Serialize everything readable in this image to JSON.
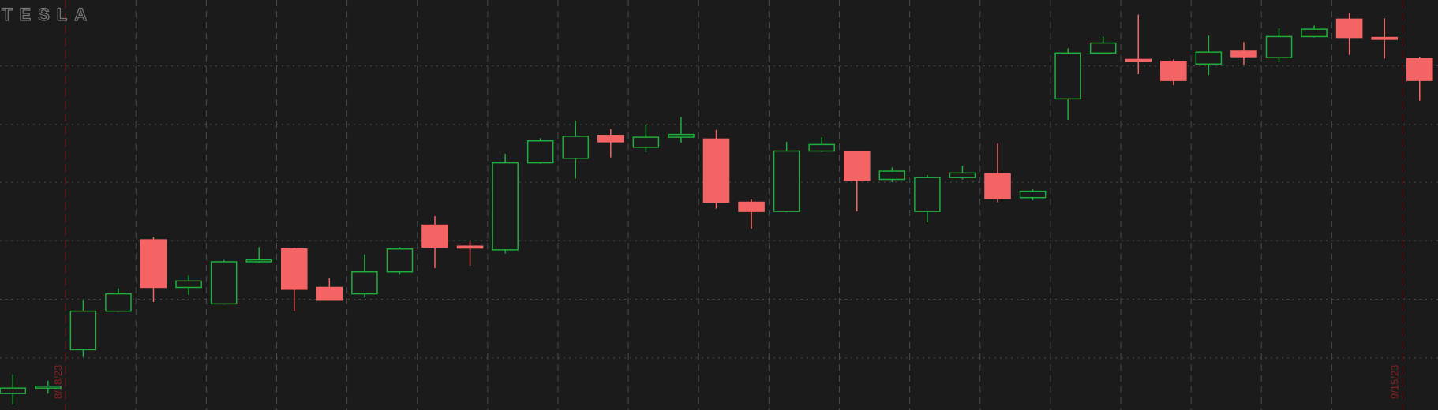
{
  "chart_data": {
    "type": "candlestick",
    "title": "TESLA",
    "categories": [
      null,
      null,
      null,
      null,
      null,
      null,
      null,
      null,
      null,
      null,
      null,
      null,
      null,
      null,
      null,
      null,
      null,
      null,
      null,
      null,
      null,
      null,
      null,
      null,
      null,
      null,
      null,
      null,
      null,
      null,
      null,
      null,
      null,
      null,
      null,
      null,
      null,
      null,
      null,
      null,
      null
    ],
    "series": [
      {
        "open": [
          18,
          24,
          66,
          108,
          186,
          134,
          116,
          162,
          176,
          134,
          127,
          151,
          202,
          179,
          175,
          270,
          275,
          300,
          287,
          298,
          296,
          227,
          217,
          283,
          282,
          252,
          217,
          254,
          258,
          232,
          340,
          390,
          383,
          381,
          378,
          392,
          385,
          408,
          427,
          407,
          384
        ],
        "high": [
          39,
          32,
          120,
          133,
          189,
          147,
          164,
          178,
          177,
          144,
          170,
          178,
          212,
          184,
          280,
          297,
          316,
          307,
          312,
          320,
          306,
          230,
          293,
          298,
          282,
          265,
          257,
          267,
          291,
          241,
          395,
          408,
          432,
          383,
          409,
          402,
          417,
          420,
          434,
          428,
          386
        ],
        "low": [
          6,
          18,
          58,
          107,
          118,
          126,
          115,
          161,
          108,
          120,
          123,
          148,
          155,
          158,
          171,
          269,
          253,
          276,
          282,
          292,
          220,
          198,
          216,
          282,
          217,
          249,
          205,
          252,
          227,
          229,
          317,
          390,
          367,
          355,
          366,
          377,
          380,
          407,
          388,
          384,
          338
        ],
        "close": [
          24,
          26,
          108,
          127,
          134,
          141,
          162,
          164,
          132,
          120,
          151,
          176,
          178,
          177,
          270,
          294,
          299,
          293,
          298,
          301,
          227,
          217,
          283,
          290,
          251,
          261,
          254,
          259,
          231,
          239,
          390,
          401,
          381,
          360,
          391,
          386,
          408,
          416,
          407,
          405,
          360
        ]
      }
    ],
    "up_color": "#1fae3c",
    "down_color": "#f46464",
    "ylim": [
      0,
      448
    ],
    "ygrid": [
      57,
      121,
      185,
      249,
      312,
      376
    ],
    "markers": [
      {
        "label": "8/18/23",
        "index": 2
      },
      {
        "label": "9/15/23",
        "index": 40
      }
    ]
  }
}
